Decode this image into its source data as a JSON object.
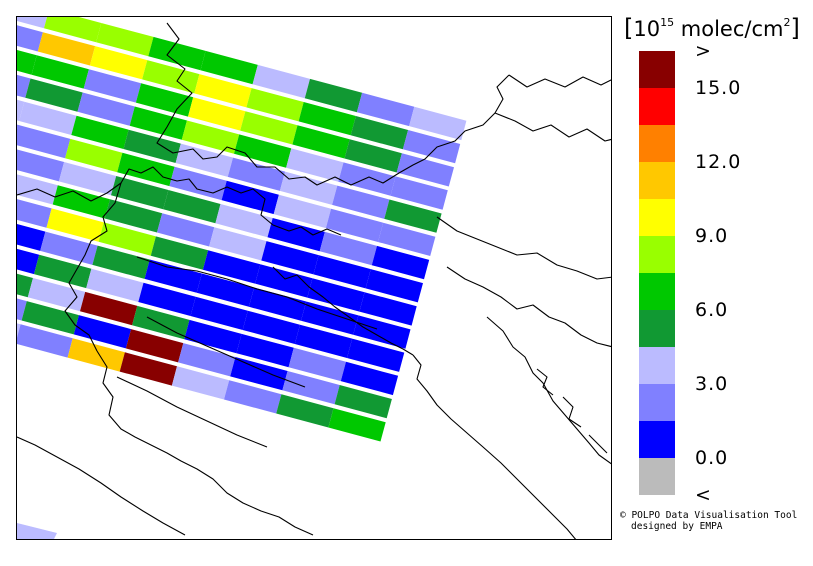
{
  "legend": {
    "unit_prefix": "10",
    "unit_exp": "15",
    "unit_main": "molec/cm",
    "unit_sq": "2",
    "colors": [
      "#bbbbbb",
      "#0000ff",
      "#8080ff",
      "#bbbbff",
      "#119933",
      "#00c800",
      "#99ff00",
      "#ffff00",
      "#ffc800",
      "#ff8000",
      "#ff0000",
      "#880000"
    ],
    "ticks": [
      {
        "label": ">",
        "after_swatch": 12
      },
      {
        "label": "15.0",
        "after_swatch": 11
      },
      {
        "label": "12.0",
        "after_swatch": 9
      },
      {
        "label": "9.0",
        "after_swatch": 7
      },
      {
        "label": "6.0",
        "after_swatch": 5
      },
      {
        "label": "3.0",
        "after_swatch": 3
      },
      {
        "label": "0.0",
        "after_swatch": 1
      },
      {
        "label": "<",
        "after_swatch": 0
      }
    ]
  },
  "credits": {
    "line1": "© POLPO Data Visualisation Tool",
    "line2": "designed by EMPA"
  },
  "swath": {
    "rows": [
      [
        "C",
        "7",
        "7",
        "6",
        "6",
        "C",
        "5",
        "B",
        "C"
      ],
      [
        "B",
        "9",
        "8",
        "7",
        "8",
        "7",
        "6",
        "5",
        "B"
      ],
      [
        "6",
        "6",
        "B",
        "6",
        "8",
        "7",
        "6",
        "5",
        "B"
      ],
      [
        "B",
        "5",
        "B",
        "6",
        "7",
        "6",
        "C",
        "B",
        "B"
      ],
      [
        "C",
        "C",
        "6",
        "5",
        "C",
        "B",
        "C",
        "B",
        "5"
      ],
      [
        "B",
        "B",
        "7",
        "6",
        "B",
        "1",
        "C",
        "B",
        "B"
      ],
      [
        "5",
        "B",
        "C",
        "5",
        "5",
        "C",
        "1",
        "B",
        "1"
      ],
      [
        "1",
        "C",
        "6",
        "5",
        "B",
        "C",
        "1",
        "1",
        "1"
      ],
      [
        "1",
        "B",
        "8",
        "7",
        "5",
        "1",
        "1",
        "1",
        "1"
      ],
      [
        "1",
        "1",
        "B",
        "5",
        "1",
        "1",
        "1",
        "1",
        "1"
      ],
      [
        "B",
        "1",
        "5",
        "C",
        "1",
        "1",
        "1",
        "1",
        "1"
      ],
      [
        "1",
        "5",
        "C",
        "R",
        "5",
        "1",
        "1",
        "B",
        "1"
      ],
      [
        "C",
        "B",
        "5",
        "1",
        "R",
        "B",
        "1",
        "B",
        "5"
      ],
      [
        "C",
        "C",
        "B",
        "9",
        "R",
        "C",
        "B",
        "5",
        "6"
      ]
    ]
  }
}
